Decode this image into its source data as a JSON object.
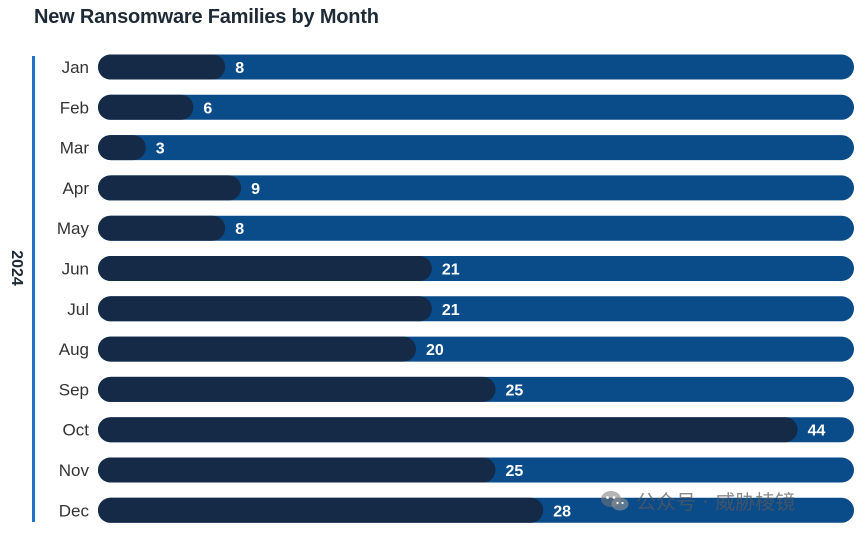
{
  "title": "New Ransomware Families by Month",
  "year_label": "2024",
  "watermark": {
    "text": "公众号 · 威胁棱镜",
    "icon": "wechat-icon"
  },
  "colors": {
    "track": "#0a4b8a",
    "fill": "#152a47",
    "axis_line": "#1f73c9",
    "value_text": "#ffffff",
    "month_text": "#333333"
  },
  "chart_data": {
    "type": "bar",
    "orientation": "horizontal",
    "title": "New Ransomware Families by Month",
    "group_label": "2024",
    "categories": [
      "Jan",
      "Feb",
      "Mar",
      "Apr",
      "May",
      "Jun",
      "Jul",
      "Aug",
      "Sep",
      "Oct",
      "Nov",
      "Dec"
    ],
    "values": [
      8,
      6,
      3,
      9,
      8,
      21,
      21,
      20,
      25,
      44,
      25,
      28
    ],
    "xlim": [
      0,
      45
    ],
    "data_labels": true,
    "grid": false,
    "legend": "none"
  }
}
